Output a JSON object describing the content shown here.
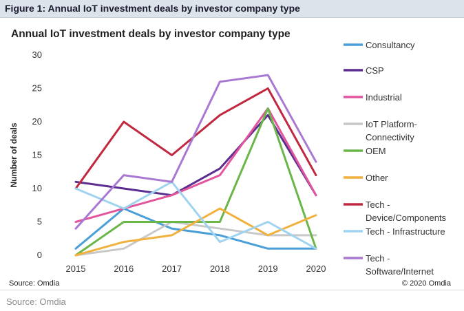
{
  "figure_label": "Figure 1: Annual IoT investment deals by investor company type",
  "source_inner": "Source: Omdia",
  "copyright": "© 2020 Omdia",
  "source_outer": "Source: Omdia",
  "chart_data": {
    "type": "line",
    "title": "Annual IoT investment deals by investor company type",
    "xlabel": "",
    "ylabel": "Number of deals",
    "ylim": [
      0,
      30
    ],
    "yticks": [
      0,
      5,
      10,
      15,
      20,
      25,
      30
    ],
    "x": [
      "2015",
      "2016",
      "2017",
      "2018",
      "2019",
      "2020"
    ],
    "grid": false,
    "legend_position": "right",
    "series": [
      {
        "name": "Consultancy",
        "color": "#4a9fd8",
        "values": [
          1,
          7,
          4,
          3,
          1,
          1
        ]
      },
      {
        "name": "CSP",
        "color": "#5b2d90",
        "values": [
          11,
          10,
          9,
          13,
          21,
          9
        ]
      },
      {
        "name": "Industrial",
        "color": "#e2559d",
        "values": [
          5,
          7,
          9,
          12,
          22,
          9
        ]
      },
      {
        "name": "IoT Platform-Connectivity",
        "label_lines": [
          "IoT Platform-",
          "Connectivity"
        ],
        "color": "#c8c8c8",
        "values": [
          0,
          1,
          5,
          4,
          3,
          3
        ]
      },
      {
        "name": "OEM",
        "color": "#6ab648",
        "values": [
          0,
          5,
          5,
          5,
          22,
          1
        ]
      },
      {
        "name": "Other",
        "color": "#f0b13d",
        "values": [
          0,
          2,
          3,
          7,
          3,
          6
        ]
      },
      {
        "name": "Tech - Device/Components",
        "label_lines": [
          "Tech -",
          "Device/Components"
        ],
        "color": "#c0283f",
        "values": [
          10,
          20,
          15,
          21,
          25,
          12
        ]
      },
      {
        "name": "Tech - Infrastructure",
        "color": "#9fd3ef",
        "values": [
          10,
          7,
          11,
          2,
          5,
          1
        ]
      },
      {
        "name": "Tech - Software/Internet",
        "label_lines": [
          "Tech -",
          "Software/Internet"
        ],
        "color": "#a878d2",
        "values": [
          4,
          12,
          11,
          26,
          27,
          14
        ]
      }
    ]
  }
}
